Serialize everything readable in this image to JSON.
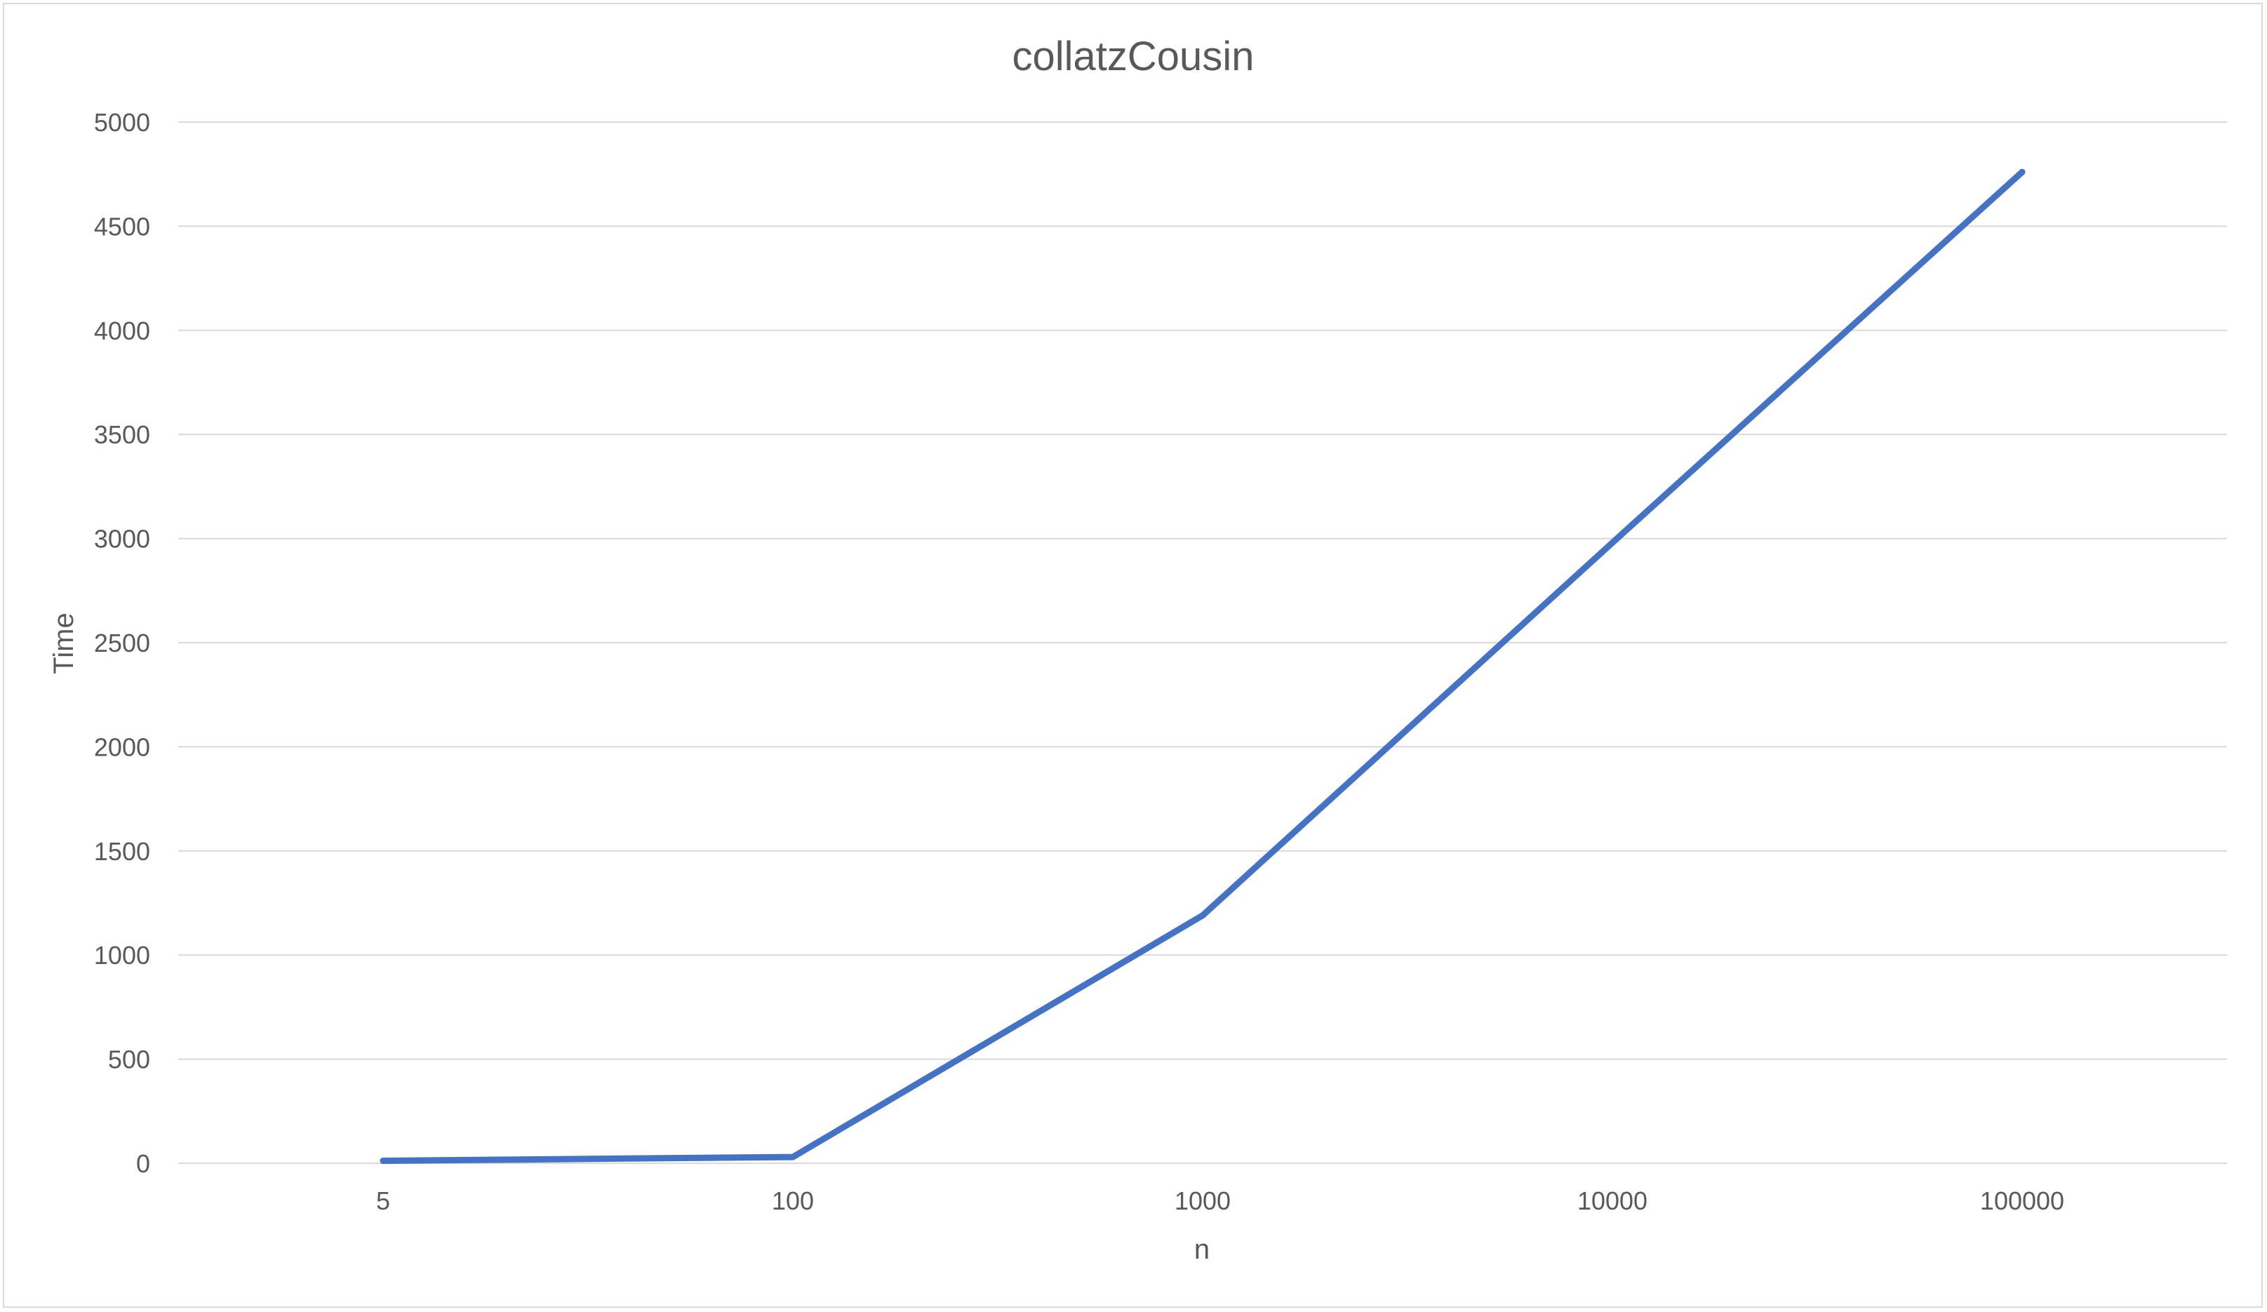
{
  "chart_data": {
    "type": "line",
    "title": "collatzCousin",
    "xlabel": "n",
    "ylabel": "Time",
    "categories": [
      "5",
      "100",
      "1000",
      "10000",
      "100000"
    ],
    "series": [
      {
        "name": "Time",
        "color": "#4472c4",
        "values": [
          12,
          30,
          1190,
          2980,
          4760
        ]
      }
    ],
    "ylim": [
      0,
      5000
    ],
    "yticks": [
      0,
      500,
      1000,
      1500,
      2000,
      2500,
      3000,
      3500,
      4000,
      4500,
      5000
    ],
    "grid": true,
    "legend": "none"
  }
}
